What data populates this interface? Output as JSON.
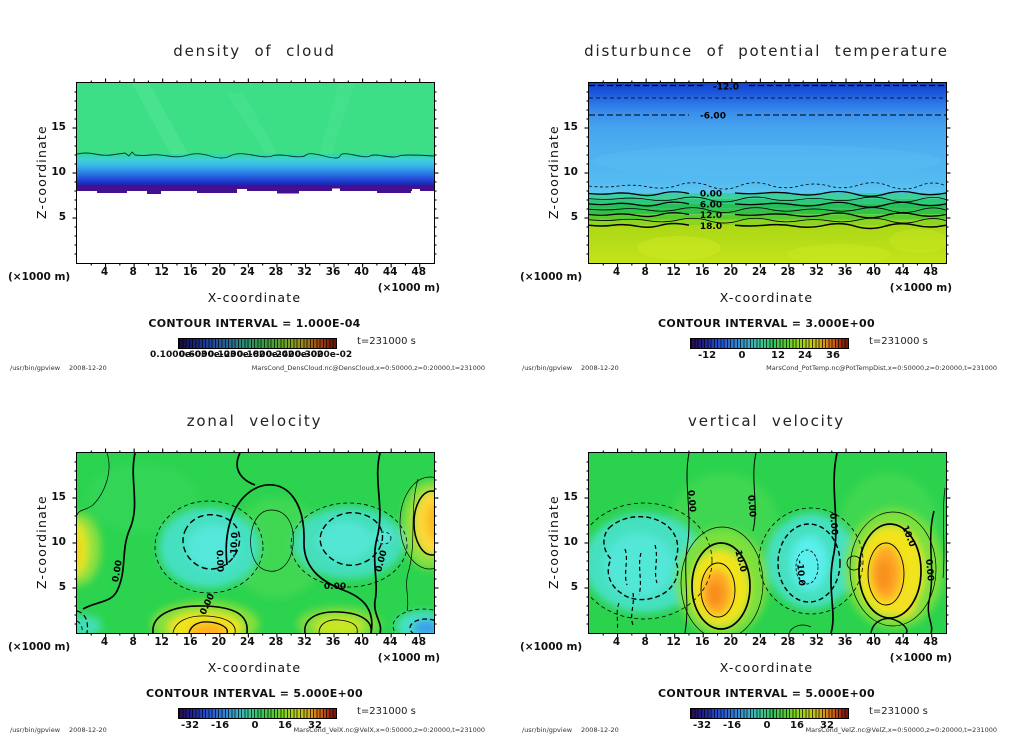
{
  "app": {
    "command": "/usr/bin/gpview",
    "date": "2008-12-20"
  },
  "shared": {
    "xlabel": "X-coordinate",
    "ylabel": "Z-coordinate",
    "x_unit": "(×1000 m)",
    "y_unit": "(×1000 m)",
    "time_label": "t=231000 s",
    "x_ticks": [
      "4",
      "8",
      "12",
      "16",
      "20",
      "24",
      "28",
      "32",
      "36",
      "40",
      "44",
      "48"
    ],
    "y_ticks": [
      "5",
      "10",
      "15"
    ]
  },
  "panels": [
    {
      "title": "density of cloud",
      "contour_interval_label": "CONTOUR INTERVAL = 1.000E-04",
      "footer_right": "MarsCond_DensCloud.nc@DensCloud,x=0:50000,z=0:20000,t=231000",
      "colorbar_labels": [
        "0.1000e-03",
        "0.6000e-03",
        "0.1200e-02",
        "0.1800e-02",
        "0.2400e-02",
        "0.3000e-02"
      ],
      "contour_labels": []
    },
    {
      "title": "disturbunce of potential temperature",
      "contour_interval_label": "CONTOUR INTERVAL = 3.000E+00",
      "footer_right": "MarsCond_PotTemp.nc@PotTempDist,x=0:50000,z=0:20000,t=231000",
      "colorbar_labels": [
        "-12",
        "0",
        "12",
        "24",
        "36"
      ],
      "contour_labels": [
        "-12.0",
        "-6.00",
        "0.00",
        "6.00",
        "12.0",
        "18.0"
      ]
    },
    {
      "title": "zonal velocity",
      "contour_interval_label": "CONTOUR INTERVAL = 5.000E+00",
      "footer_right": "MarsCond_VelX.nc@VelX,x=0:50000,z=0:20000,t=231000",
      "colorbar_labels": [
        "-32",
        "-16",
        "0",
        "16",
        "32"
      ],
      "contour_labels": [
        "0.00",
        "-10.0",
        "0.00",
        "0.00",
        "0.00",
        "0.00"
      ]
    },
    {
      "title": "vertical velocity",
      "contour_interval_label": "CONTOUR INTERVAL = 5.000E+00",
      "footer_right": "MarsCond_VelZ.nc@VelZ,x=0:50000,z=0:20000,t=231000",
      "colorbar_labels": [
        "-32",
        "-16",
        "0",
        "16",
        "32"
      ],
      "contour_labels": [
        "0.00",
        "0.00",
        "0.00",
        "10.0",
        "-10.0",
        "10.0",
        "0.00"
      ]
    }
  ],
  "chart_data": [
    {
      "type": "heatmap",
      "title": "density of cloud",
      "xlabel": "X-coordinate",
      "ylabel": "Z-coordinate",
      "x_unit": "×1000 m",
      "y_unit": "×1000 m",
      "xlim": [
        0,
        50
      ],
      "ylim": [
        0,
        20
      ],
      "x_ticks": [
        4,
        8,
        12,
        16,
        20,
        24,
        28,
        32,
        36,
        40,
        44,
        48
      ],
      "y_ticks": [
        5,
        10,
        15
      ],
      "contour_interval": 0.0001,
      "time_seconds": 231000,
      "legend_position": "below",
      "grid": false,
      "z_profile": [
        {
          "z_range": [
            12.2,
            20
          ],
          "value": 0.0,
          "appearance": "uniform green background"
        },
        {
          "z_range": [
            8.5,
            12.2
          ],
          "value_range": [
            0.0001,
            0.0025
          ],
          "appearance": "cyan to dark blue gradient, increasing downward"
        },
        {
          "z_range": [
            8.0,
            8.5
          ],
          "value": 0.0028,
          "appearance": "dark purple maximum layer with ragged base"
        },
        {
          "z_range": [
            0,
            8.0
          ],
          "value": null,
          "appearance": "white, no cloud"
        }
      ],
      "labeled_contours": []
    },
    {
      "type": "heatmap",
      "title": "disturbunce of potential temperature",
      "xlabel": "X-coordinate",
      "ylabel": "Z-coordinate",
      "x_unit": "×1000 m",
      "y_unit": "×1000 m",
      "xlim": [
        0,
        50
      ],
      "ylim": [
        0,
        20
      ],
      "x_ticks": [
        4,
        8,
        12,
        16,
        20,
        24,
        28,
        32,
        36,
        40,
        44,
        48
      ],
      "y_ticks": [
        5,
        10,
        15
      ],
      "contour_interval": 3.0,
      "time_seconds": 231000,
      "colorbar_ticks": [
        -12,
        0,
        12,
        24,
        36
      ],
      "labeled_contours": [
        -12.0,
        -6.0,
        0.0,
        6.0,
        12.0,
        18.0
      ],
      "z_profile": [
        {
          "z": 20,
          "value": -13
        },
        {
          "z": 17.5,
          "value": -9
        },
        {
          "z": 16.4,
          "value": -6
        },
        {
          "z": 12,
          "value": -4
        },
        {
          "z": 8.4,
          "value": -1.5
        },
        {
          "z": 7.8,
          "value": 0
        },
        {
          "z": 6.6,
          "value": 6
        },
        {
          "z": 5.4,
          "value": 12
        },
        {
          "z": 4.2,
          "value": 18
        },
        {
          "z": 2,
          "value": 21
        },
        {
          "z": 0,
          "value": 22
        }
      ]
    },
    {
      "type": "heatmap",
      "title": "zonal velocity",
      "xlabel": "X-coordinate",
      "ylabel": "Z-coordinate",
      "x_unit": "×1000 m",
      "y_unit": "×1000 m",
      "xlim": [
        0,
        50
      ],
      "ylim": [
        0,
        20
      ],
      "x_ticks": [
        4,
        8,
        12,
        16,
        20,
        24,
        28,
        32,
        36,
        40,
        44,
        48
      ],
      "y_ticks": [
        5,
        10,
        15
      ],
      "contour_interval": 5.0,
      "time_seconds": 231000,
      "colorbar_ticks": [
        -32,
        -16,
        0,
        16,
        32
      ],
      "labeled_contours": [
        -10.0,
        0.0
      ],
      "background_value": 0,
      "features": [
        {
          "x": 14,
          "z": 9.5,
          "value": -12,
          "appearance": "cyan negative cell, dashed contours"
        },
        {
          "x": 34,
          "z": 9.5,
          "value": -12,
          "appearance": "cyan negative cell, dashed contours"
        },
        {
          "x": 0.5,
          "z": 9.5,
          "value": 13,
          "appearance": "yellow positive cell at left edge"
        },
        {
          "x": 49,
          "z": 11,
          "value": 15,
          "appearance": "yellow-orange positive cell at right edge"
        },
        {
          "x": 15,
          "z": 0.8,
          "value": 22,
          "appearance": "yellow-orange positive cell at bottom"
        },
        {
          "x": 33,
          "z": 1.5,
          "value": 8,
          "appearance": "yellow-green positive cell at bottom"
        },
        {
          "x": 48,
          "z": 0.8,
          "value": -14,
          "appearance": "cyan-blue negative cell at bottom right"
        },
        {
          "x": 25,
          "z": 8,
          "value": 3,
          "appearance": "light green dome bounded by 0.00 contour"
        }
      ]
    },
    {
      "type": "heatmap",
      "title": "vertical velocity",
      "xlabel": "X-coordinate",
      "ylabel": "Z-coordinate",
      "x_unit": "×1000 m",
      "y_unit": "×1000 m",
      "xlim": [
        0,
        50
      ],
      "ylim": [
        0,
        20
      ],
      "x_ticks": [
        4,
        8,
        12,
        16,
        20,
        24,
        28,
        32,
        36,
        40,
        44,
        48
      ],
      "y_ticks": [
        5,
        10,
        15
      ],
      "contour_interval": 5.0,
      "time_seconds": 231000,
      "colorbar_ticks": [
        -32,
        -16,
        0,
        16,
        32
      ],
      "labeled_contours": [
        -10.0,
        0.0,
        10.0
      ],
      "background_value": 0,
      "features": [
        {
          "x": 7,
          "z": 7,
          "value": -8,
          "appearance": "broad cyan downdraft, dashed contours"
        },
        {
          "x": 18.5,
          "z": 5.5,
          "value": 22,
          "appearance": "strong yellow-orange updraft"
        },
        {
          "x": 27.5,
          "z": 6.5,
          "value": -12,
          "appearance": "cyan downdraft, dashed contours"
        },
        {
          "x": 41.5,
          "z": 6.5,
          "value": 24,
          "appearance": "strong yellow-orange updraft"
        }
      ]
    }
  ]
}
